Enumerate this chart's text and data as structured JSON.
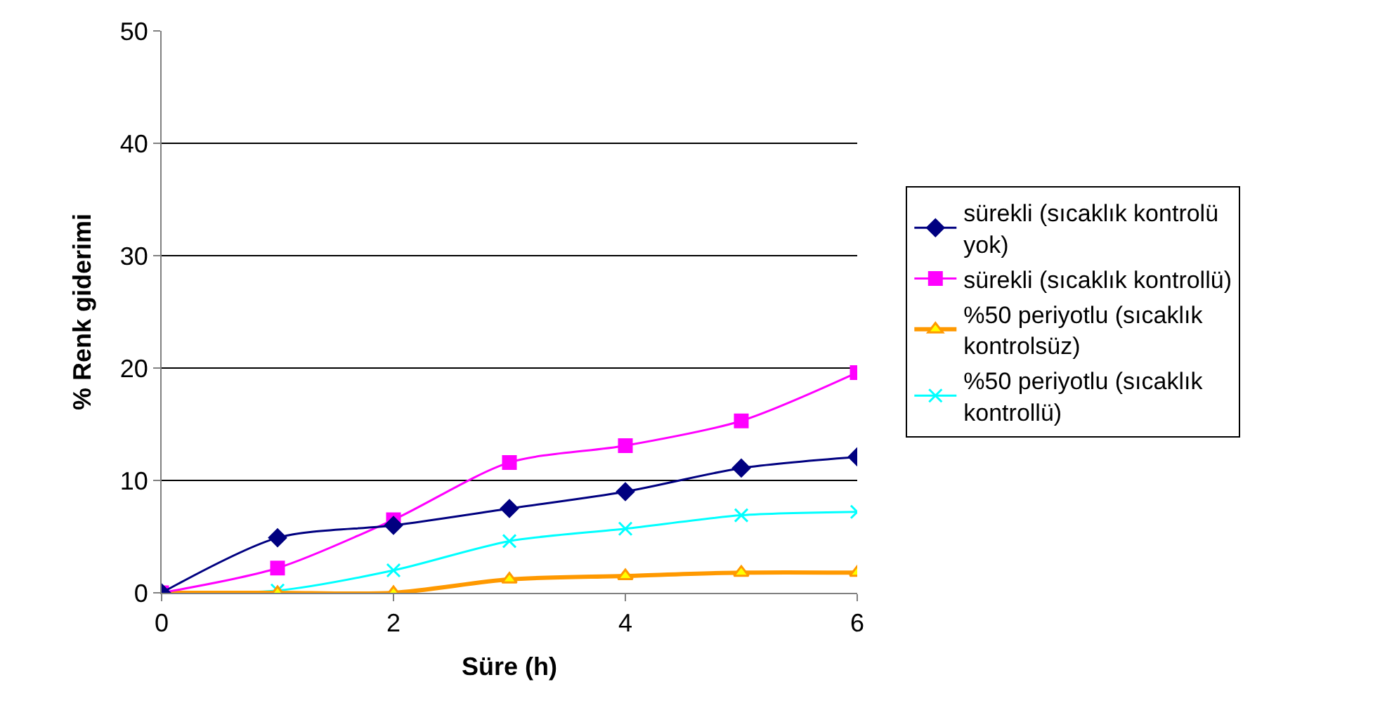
{
  "chart_data": {
    "type": "line",
    "xlabel": "Süre (h)",
    "ylabel": "% Renk giderimi",
    "x": [
      0,
      1,
      2,
      3,
      4,
      5,
      6
    ],
    "xlim": [
      0,
      6
    ],
    "xticks": [
      0,
      2,
      4,
      6
    ],
    "ylim": [
      0,
      50
    ],
    "yticks": [
      0,
      10,
      20,
      30,
      40,
      50
    ],
    "grid": "y",
    "legend": "right",
    "series": [
      {
        "name": "sürekli (sıcaklık kontrolü yok)",
        "color": "#000080",
        "marker": "diamond",
        "values": [
          0,
          4.9,
          6.0,
          7.5,
          9.0,
          11.1,
          12.1
        ]
      },
      {
        "name": "sürekli (sıcaklık kontrollü)",
        "color": "#ff00ff",
        "marker": "square",
        "values": [
          0,
          2.2,
          6.5,
          11.6,
          13.1,
          15.3,
          19.6
        ]
      },
      {
        "name": "%50 periyotlu (sıcaklık kontrolsüz)",
        "color": "#ff9900",
        "marker": "triangle",
        "values": [
          0,
          0,
          0,
          1.2,
          1.5,
          1.8,
          1.8
        ]
      },
      {
        "name": "%50 periyotlu (sıcaklık kontrollü)",
        "color": "#00ffff",
        "marker": "cross",
        "values": [
          0,
          0.2,
          2.0,
          4.6,
          5.7,
          6.9,
          7.2
        ]
      }
    ]
  }
}
